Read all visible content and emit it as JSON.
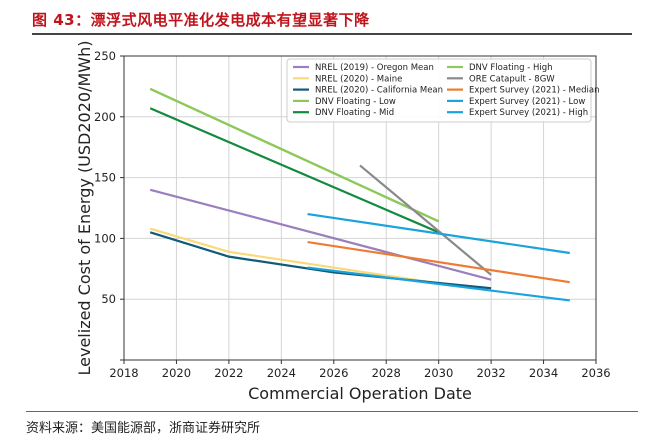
{
  "figure": {
    "title": "图 43：漂浮式风电平准化发电成本有望显著下降",
    "source": "资料来源：美国能源部，浙商证券研究所"
  },
  "chart_data": {
    "type": "line",
    "title": "",
    "xlabel": "Commercial Operation Date",
    "ylabel": "Levelized Cost of Energy (USD2020/MWh)",
    "xlim": [
      2018,
      2036
    ],
    "ylim": [
      0,
      250
    ],
    "xticks": [
      2018,
      2020,
      2022,
      2024,
      2026,
      2028,
      2030,
      2032,
      2034,
      2036
    ],
    "yticks": [
      50,
      100,
      150,
      200,
      250
    ],
    "grid": true,
    "legend_position": "top-right",
    "series": [
      {
        "name": "NREL (2019) - Oregon Mean",
        "color": "#9b7fbd",
        "points": [
          [
            2019,
            140
          ],
          [
            2032,
            66
          ]
        ]
      },
      {
        "name": "NREL (2020) - Maine",
        "color": "#fbd97a",
        "points": [
          [
            2019,
            108
          ],
          [
            2022,
            89
          ],
          [
            2030,
            63
          ]
        ]
      },
      {
        "name": "NREL (2020) - California Mean",
        "color": "#125a7a",
        "points": [
          [
            2019,
            105
          ],
          [
            2022,
            85
          ],
          [
            2026,
            72
          ],
          [
            2032,
            59
          ]
        ]
      },
      {
        "name": "DNV Floating - Low",
        "color": "#8cc85a",
        "points": [
          [
            2019,
            223
          ],
          [
            2030,
            114
          ]
        ]
      },
      {
        "name": "DNV Floating - Mid",
        "color": "#138a3e",
        "points": [
          [
            2019,
            207
          ],
          [
            2030,
            105
          ]
        ]
      },
      {
        "name": "DNV Floating - High",
        "color": "#8cc85a",
        "points": [
          [
            2019,
            223
          ],
          [
            2030,
            114
          ]
        ]
      },
      {
        "name": "ORE Catapult - 8GW",
        "color": "#8a8a8a",
        "points": [
          [
            2027,
            160
          ],
          [
            2032,
            70
          ]
        ]
      },
      {
        "name": "Expert Survey (2021) - Median",
        "color": "#ee7b33",
        "points": [
          [
            2025,
            97
          ],
          [
            2035,
            64
          ]
        ]
      },
      {
        "name": "Expert Survey (2021) - Low",
        "color": "#1aa3dd",
        "points": [
          [
            2025,
            76
          ],
          [
            2035,
            49
          ]
        ]
      },
      {
        "name": "Expert Survey (2021) - High",
        "color": "#1aa3dd",
        "points": [
          [
            2025,
            120
          ],
          [
            2035,
            88
          ]
        ]
      }
    ]
  }
}
